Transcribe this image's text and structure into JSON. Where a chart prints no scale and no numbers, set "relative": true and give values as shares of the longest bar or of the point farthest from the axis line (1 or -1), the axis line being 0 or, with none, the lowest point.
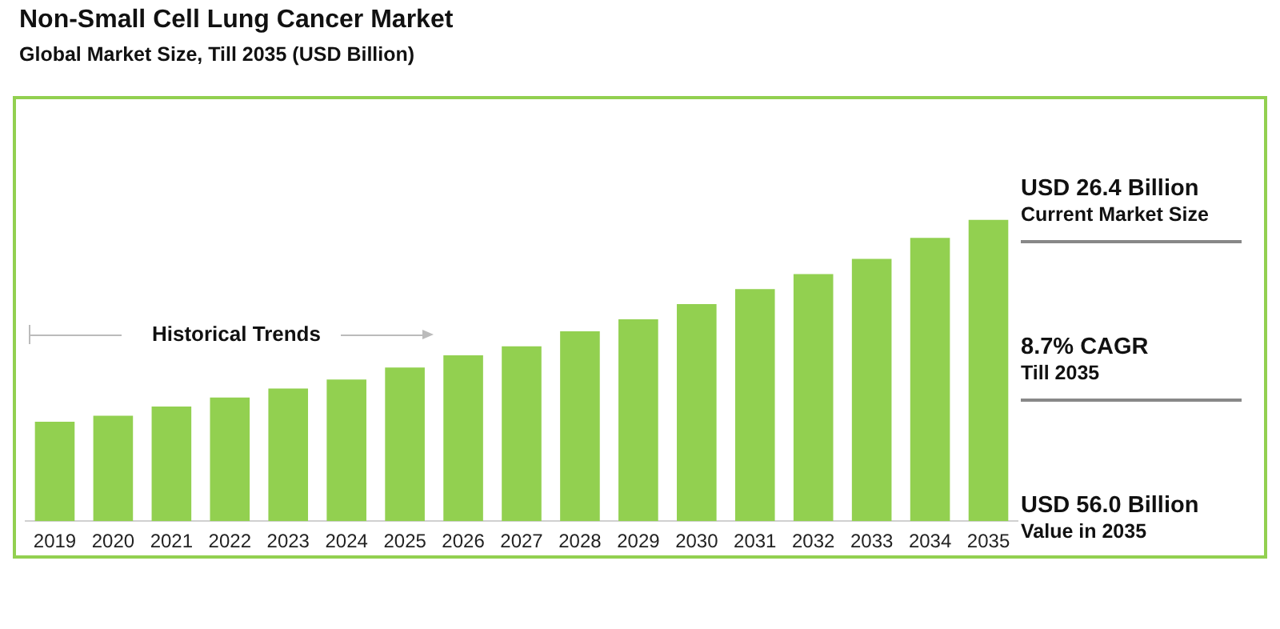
{
  "chart_data": {
    "type": "bar",
    "title": "Non-Small Cell Lung Cancer Market",
    "subtitle": "Global Market Size, Till 2035 (USD Billion)",
    "categories": [
      "2019",
      "2020",
      "2021",
      "2022",
      "2023",
      "2024",
      "2025",
      "2026",
      "2027",
      "2028",
      "2029",
      "2030",
      "2031",
      "2032",
      "2033",
      "2034",
      "2035"
    ],
    "values": [
      0.33,
      0.35,
      0.38,
      0.41,
      0.44,
      0.47,
      0.51,
      0.55,
      0.58,
      0.63,
      0.67,
      0.72,
      0.77,
      0.82,
      0.87,
      0.94,
      1
    ],
    "color": "#92d050",
    "relative": true,
    "grid": false,
    "legend": false,
    "annotations": [
      "Historical Trends",
      "USD 26.4 Billion",
      "Current Market Size",
      "8.7% CAGR",
      "Till 2035",
      "USD 56.0 Billion",
      "Value in 2035"
    ]
  }
}
